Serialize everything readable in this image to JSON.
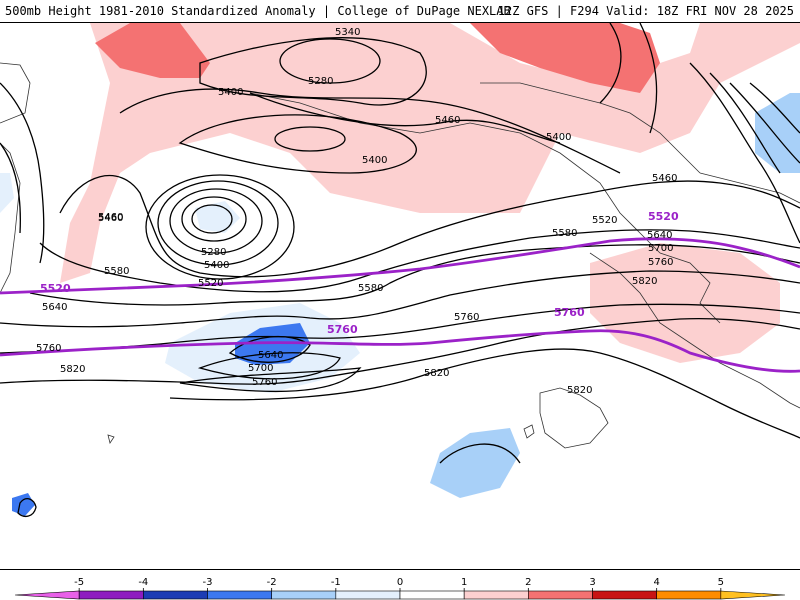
{
  "header": {
    "title_left": "500mb Height 1981-2010 Standardized Anomaly | College of DuPage NEXLAB",
    "title_right": "12Z GFS | F294 Valid: 18Z FRI NOV 28 2025"
  },
  "map": {
    "height_contour_labels": [
      "5340",
      "5280",
      "5400",
      "5460",
      "5400",
      "5400",
      "5460",
      "5460",
      "5520",
      "5580",
      "5640",
      "5700",
      "5760",
      "5820",
      "5460",
      "5280",
      "5400",
      "5520",
      "5580",
      "5580",
      "5640",
      "5760",
      "5820",
      "5640",
      "5700",
      "5760",
      "5760",
      "5820",
      "5820"
    ],
    "reference_contour_labels": [
      "5520",
      "5520",
      "5760",
      "5760"
    ],
    "colors": {
      "reference_contour": "#9b22c8",
      "height_contour": "#000000",
      "coastline": "#333333"
    }
  },
  "colorbar": {
    "tick_labels": [
      "-5",
      "-4",
      "-3",
      "-2",
      "-1",
      "0",
      "1",
      "2",
      "3",
      "4",
      "5"
    ],
    "bins": [
      {
        "from": -6,
        "to": -5,
        "color": "#e860e8"
      },
      {
        "from": -5,
        "to": -4,
        "color": "#8e1cc0"
      },
      {
        "from": -4,
        "to": -3,
        "color": "#1c3cb4"
      },
      {
        "from": -3,
        "to": -2,
        "color": "#3c78f0"
      },
      {
        "from": -2,
        "to": -1,
        "color": "#a8d0f8"
      },
      {
        "from": -1,
        "to": 0,
        "color": "#e4f0fc"
      },
      {
        "from": 0,
        "to": 1,
        "color": "#ffffff"
      },
      {
        "from": 1,
        "to": 2,
        "color": "#fcd0d0"
      },
      {
        "from": 2,
        "to": 3,
        "color": "#f47272"
      },
      {
        "from": 3,
        "to": 4,
        "color": "#c81414"
      },
      {
        "from": 4,
        "to": 5,
        "color": "#ff8c00"
      },
      {
        "from": 5,
        "to": 6,
        "color": "#ffc020"
      }
    ]
  }
}
